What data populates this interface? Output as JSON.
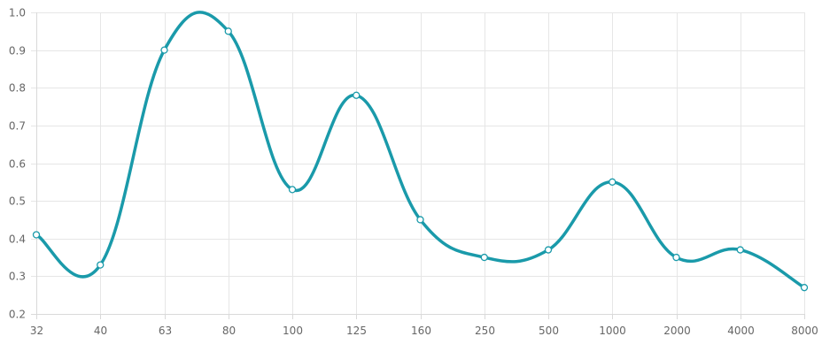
{
  "chart_data": {
    "type": "line",
    "title": "",
    "xlabel": "",
    "ylabel": "",
    "categories": [
      "32",
      "40",
      "63",
      "80",
      "100",
      "125",
      "160",
      "250",
      "500",
      "1000",
      "2000",
      "4000",
      "8000"
    ],
    "series": [
      {
        "values": [
          0.41,
          0.33,
          0.9,
          0.95,
          0.53,
          0.78,
          0.45,
          0.35,
          0.37,
          0.55,
          0.35,
          0.37,
          0.27
        ]
      }
    ],
    "ylim": [
      0.2,
      1.0
    ],
    "yticks": [
      "0.2",
      "0.3",
      "0.4",
      "0.5",
      "0.6",
      "0.7",
      "0.8",
      "0.9",
      "1.0"
    ],
    "grid": true,
    "smooth": true,
    "line_color": "#1a9aaa",
    "marker_fill": "#ffffff",
    "grid_color": "#e6e6e6"
  }
}
